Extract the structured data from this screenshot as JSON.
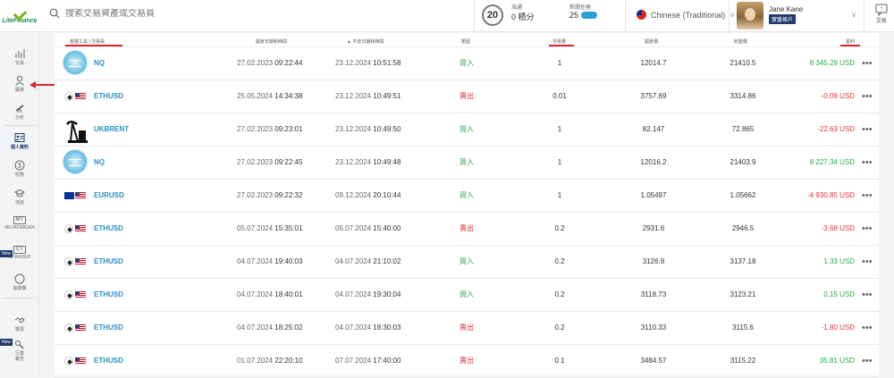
{
  "logo": {
    "text": "LiteFinance"
  },
  "search": {
    "placeholder": "搜索交易資產或交易員"
  },
  "level": {
    "badge": "20",
    "points_label": "海通",
    "points_value": "0 積分",
    "quest_label": "新聞任務",
    "quest_value": "25"
  },
  "language": {
    "label": "Chinese (Traditional)"
  },
  "user": {
    "name": "Jane Kane",
    "badge": "實盤帳戶"
  },
  "support": {
    "label": "交易"
  },
  "sidebar": {
    "items": [
      {
        "label": "交易",
        "icon": "chart-icon"
      },
      {
        "label": "跟單",
        "icon": "user-icon"
      },
      {
        "label": "分析",
        "icon": "telescope-icon"
      },
      {
        "label": "個人資料",
        "icon": "profile-icon"
      },
      {
        "label": "財務",
        "icon": "dollar-icon"
      },
      {
        "label": "培訓",
        "icon": "graduation-icon"
      },
      {
        "label": "METATRADER",
        "icon": "mt-icon",
        "box": "MT"
      },
      {
        "label": "CTRADER",
        "icon": "ct-icon",
        "box": "CT",
        "tag": "New"
      },
      {
        "label": "抽獎賽",
        "icon": "badge-icon",
        "box": "20"
      },
      {
        "label": "聯盟",
        "icon": "handshake-icon"
      },
      {
        "label": "行業\n報告",
        "icon": "report-icon",
        "tag": "New"
      }
    ]
  },
  "table": {
    "headers": [
      "金融工具 | 交易員",
      "開倉日期和時間",
      "平倉日期和時間",
      "類型",
      "交易量",
      "開倉價",
      "收盤價",
      "盈利"
    ],
    "rows": [
      {
        "symbol": "NQ",
        "icon": "nq-icon",
        "open_date": "27.02.2023",
        "open_time": "09:22:44",
        "close_date": "23.12.2024",
        "close_time": "10:51:58",
        "type": "買入",
        "type_class": "buy",
        "volume": "1",
        "open_price": "12014.7",
        "close_price": "21410.5",
        "profit": "8 345.29 USD",
        "profit_class": "pos"
      },
      {
        "symbol": "ETHUSD",
        "icon": "ethusd-icon",
        "open_date": "25.05.2024",
        "open_time": "14:34:38",
        "close_date": "23.12.2024",
        "close_time": "10:49:51",
        "type": "賣出",
        "type_class": "sell",
        "volume": "0.01",
        "open_price": "3757.69",
        "close_price": "3314.86",
        "profit": "-0.09 USD",
        "profit_class": "neg"
      },
      {
        "symbol": "UKBRENT",
        "icon": "oil-icon",
        "open_date": "27.02.2023",
        "open_time": "09:23:01",
        "close_date": "23.12.2024",
        "close_time": "10:49:50",
        "type": "買入",
        "type_class": "buy",
        "volume": "1",
        "open_price": "82.147",
        "close_price": "72.865",
        "profit": "-22.63 USD",
        "profit_class": "neg"
      },
      {
        "symbol": "NQ",
        "icon": "nq-icon",
        "open_date": "27.02.2023",
        "open_time": "09:22:45",
        "close_date": "23.12.2024",
        "close_time": "10:49:48",
        "type": "買入",
        "type_class": "buy",
        "volume": "1",
        "open_price": "12016.2",
        "close_price": "21403.9",
        "profit": "8 227.34 USD",
        "profit_class": "pos"
      },
      {
        "symbol": "EURUSD",
        "icon": "eurusd-icon",
        "open_date": "27.02.2023",
        "open_time": "09:22:32",
        "close_date": "09.12.2024",
        "close_time": "20:10:44",
        "type": "買入",
        "type_class": "buy",
        "volume": "1",
        "open_price": "1.05497",
        "close_price": "1.05662",
        "profit": "-4 930.85 USD",
        "profit_class": "neg"
      },
      {
        "symbol": "ETHUSD",
        "icon": "ethusd-icon",
        "open_date": "05.07.2024",
        "open_time": "15:35:01",
        "close_date": "05.07.2024",
        "close_time": "15:40:00",
        "type": "賣出",
        "type_class": "sell",
        "volume": "0.2",
        "open_price": "2931.6",
        "close_price": "2946.5",
        "profit": "-3.68 USD",
        "profit_class": "neg"
      },
      {
        "symbol": "ETHUSD",
        "icon": "ethusd-icon",
        "open_date": "04.07.2024",
        "open_time": "19:40:03",
        "close_date": "04.07.2024",
        "close_time": "21:10:02",
        "type": "買入",
        "type_class": "buy",
        "volume": "0.2",
        "open_price": "3126.8",
        "close_price": "3137.18",
        "profit": "1.33 USD",
        "profit_class": "pos"
      },
      {
        "symbol": "ETHUSD",
        "icon": "ethusd-icon",
        "open_date": "04.07.2024",
        "open_time": "18:40:01",
        "close_date": "04.07.2024",
        "close_time": "19:30:04",
        "type": "買入",
        "type_class": "buy",
        "volume": "0.2",
        "open_price": "3118.73",
        "close_price": "3123.21",
        "profit": "0.15 USD",
        "profit_class": "pos"
      },
      {
        "symbol": "ETHUSD",
        "icon": "ethusd-icon",
        "open_date": "04.07.2024",
        "open_time": "18:25:02",
        "close_date": "04.07.2024",
        "close_time": "18:30:03",
        "type": "賣出",
        "type_class": "sell",
        "volume": "0.2",
        "open_price": "3110.33",
        "close_price": "3115.6",
        "profit": "-1.80 USD",
        "profit_class": "neg"
      },
      {
        "symbol": "ETHUSD",
        "icon": "ethusd-icon",
        "open_date": "01.07.2024",
        "open_time": "22:20:10",
        "close_date": "07.07.2024",
        "close_time": "17:40:00",
        "type": "賣出",
        "type_class": "sell",
        "volume": "0.1",
        "open_price": "3484.57",
        "close_price": "3115.22",
        "profit": "35.81 USD",
        "profit_class": "pos"
      }
    ]
  },
  "colors": {
    "accent": "#1e3a6e",
    "buy": "#2aa84a",
    "sell": "#e0343b",
    "link": "#2a8fc7",
    "highlight": "#d9262c"
  }
}
